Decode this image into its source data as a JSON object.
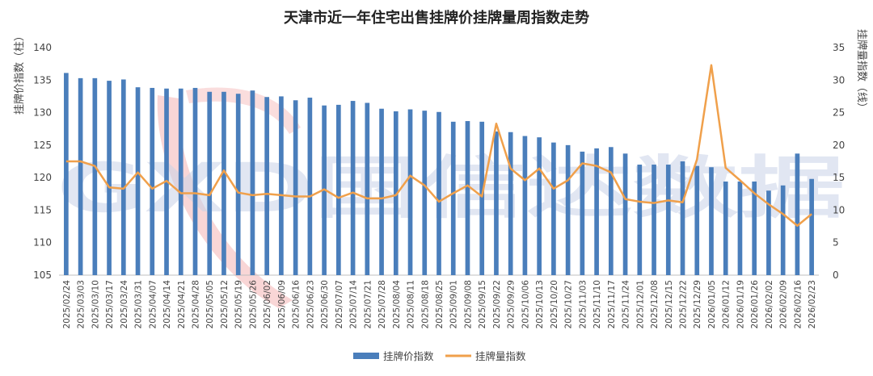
{
  "chart_data": {
    "type": "bar+line",
    "title": "天津市近一年住宅出售挂牌价挂牌量周指数走势",
    "ylabel_left": "挂牌价指数（柱）",
    "ylabel_right": "挂牌量指数（线）",
    "ylim_left": [
      105,
      140
    ],
    "yticks_left": [
      "105",
      "110",
      "115",
      "120",
      "125",
      "130",
      "135",
      "140"
    ],
    "ylim_right": [
      0,
      35
    ],
    "yticks_right": [
      "0",
      "5",
      "10",
      "15",
      "20",
      "25",
      "30",
      "35"
    ],
    "categories": [
      "2025/02/24",
      "2025/03/03",
      "2025/03/10",
      "2025/03/17",
      "2025/03/24",
      "2025/03/31",
      "2025/04/07",
      "2025/04/14",
      "2025/04/21",
      "2025/04/28",
      "2025/05/05",
      "2025/05/12",
      "2025/05/19",
      "2025/05/26",
      "2025/06/02",
      "2025/06/09",
      "2025/06/16",
      "2025/06/23",
      "2025/06/30",
      "2025/07/07",
      "2025/07/14",
      "2025/07/21",
      "2025/07/28",
      "2025/08/04",
      "2025/08/11",
      "2025/08/18",
      "2025/08/25",
      "2025/09/01",
      "2025/09/08",
      "2025/09/15",
      "2025/09/22",
      "2025/09/29",
      "2025/10/06",
      "2025/10/13",
      "2025/10/20",
      "2025/10/27",
      "2025/11/03",
      "2025/11/10",
      "2025/11/17",
      "2025/11/24",
      "2025/12/01",
      "2025/12/08",
      "2025/12/15",
      "2025/12/22",
      "2025/12/29",
      "2026/01/05",
      "2026/01/12",
      "2026/01/19",
      "2026/01/26",
      "2026/02/02",
      "2026/02/09",
      "2026/02/16",
      "2026/02/23"
    ],
    "series": [
      {
        "name": "挂牌价指数",
        "type": "bar",
        "axis": "left",
        "color": "#4a7ebb",
        "values": [
          136.1,
          135.3,
          135.3,
          134.9,
          135.1,
          133.9,
          133.8,
          133.7,
          133.7,
          133.8,
          133.2,
          133.2,
          132.9,
          133.4,
          132.4,
          132.5,
          131.9,
          132.3,
          131.1,
          131.2,
          131.8,
          131.5,
          130.6,
          130.2,
          130.5,
          130.3,
          130.1,
          128.6,
          128.7,
          128.6,
          127.1,
          127.0,
          126.4,
          126.2,
          125.4,
          125.0,
          124.0,
          124.5,
          124.7,
          123.7,
          122.0,
          122.0,
          122.0,
          122.5,
          121.8,
          121.6,
          119.4,
          119.4,
          119.4,
          118.0,
          118.8,
          123.7,
          119.8
        ]
      },
      {
        "name": "挂牌量指数",
        "type": "line",
        "axis": "right",
        "color": "#f0a04b",
        "values": [
          17.5,
          17.5,
          16.8,
          13.5,
          13.3,
          15.8,
          13.3,
          14.5,
          12.6,
          12.6,
          12.3,
          16.1,
          12.7,
          12.3,
          12.5,
          12.3,
          12.1,
          12.1,
          13.2,
          11.9,
          12.7,
          11.8,
          11.8,
          12.3,
          15.3,
          13.8,
          11.3,
          12.6,
          13.8,
          12.1,
          23.3,
          16.4,
          14.6,
          16.4,
          13.3,
          14.6,
          17.2,
          16.8,
          15.8,
          11.7,
          11.3,
          11.1,
          11.5,
          11.2,
          17.8,
          32.3,
          16.5,
          14.6,
          12.6,
          10.9,
          9.4,
          7.6,
          9.4
        ]
      }
    ],
    "legend_position": "bottom-center",
    "grid": false
  },
  "watermark": {
    "text": "GXD国信达数据"
  }
}
